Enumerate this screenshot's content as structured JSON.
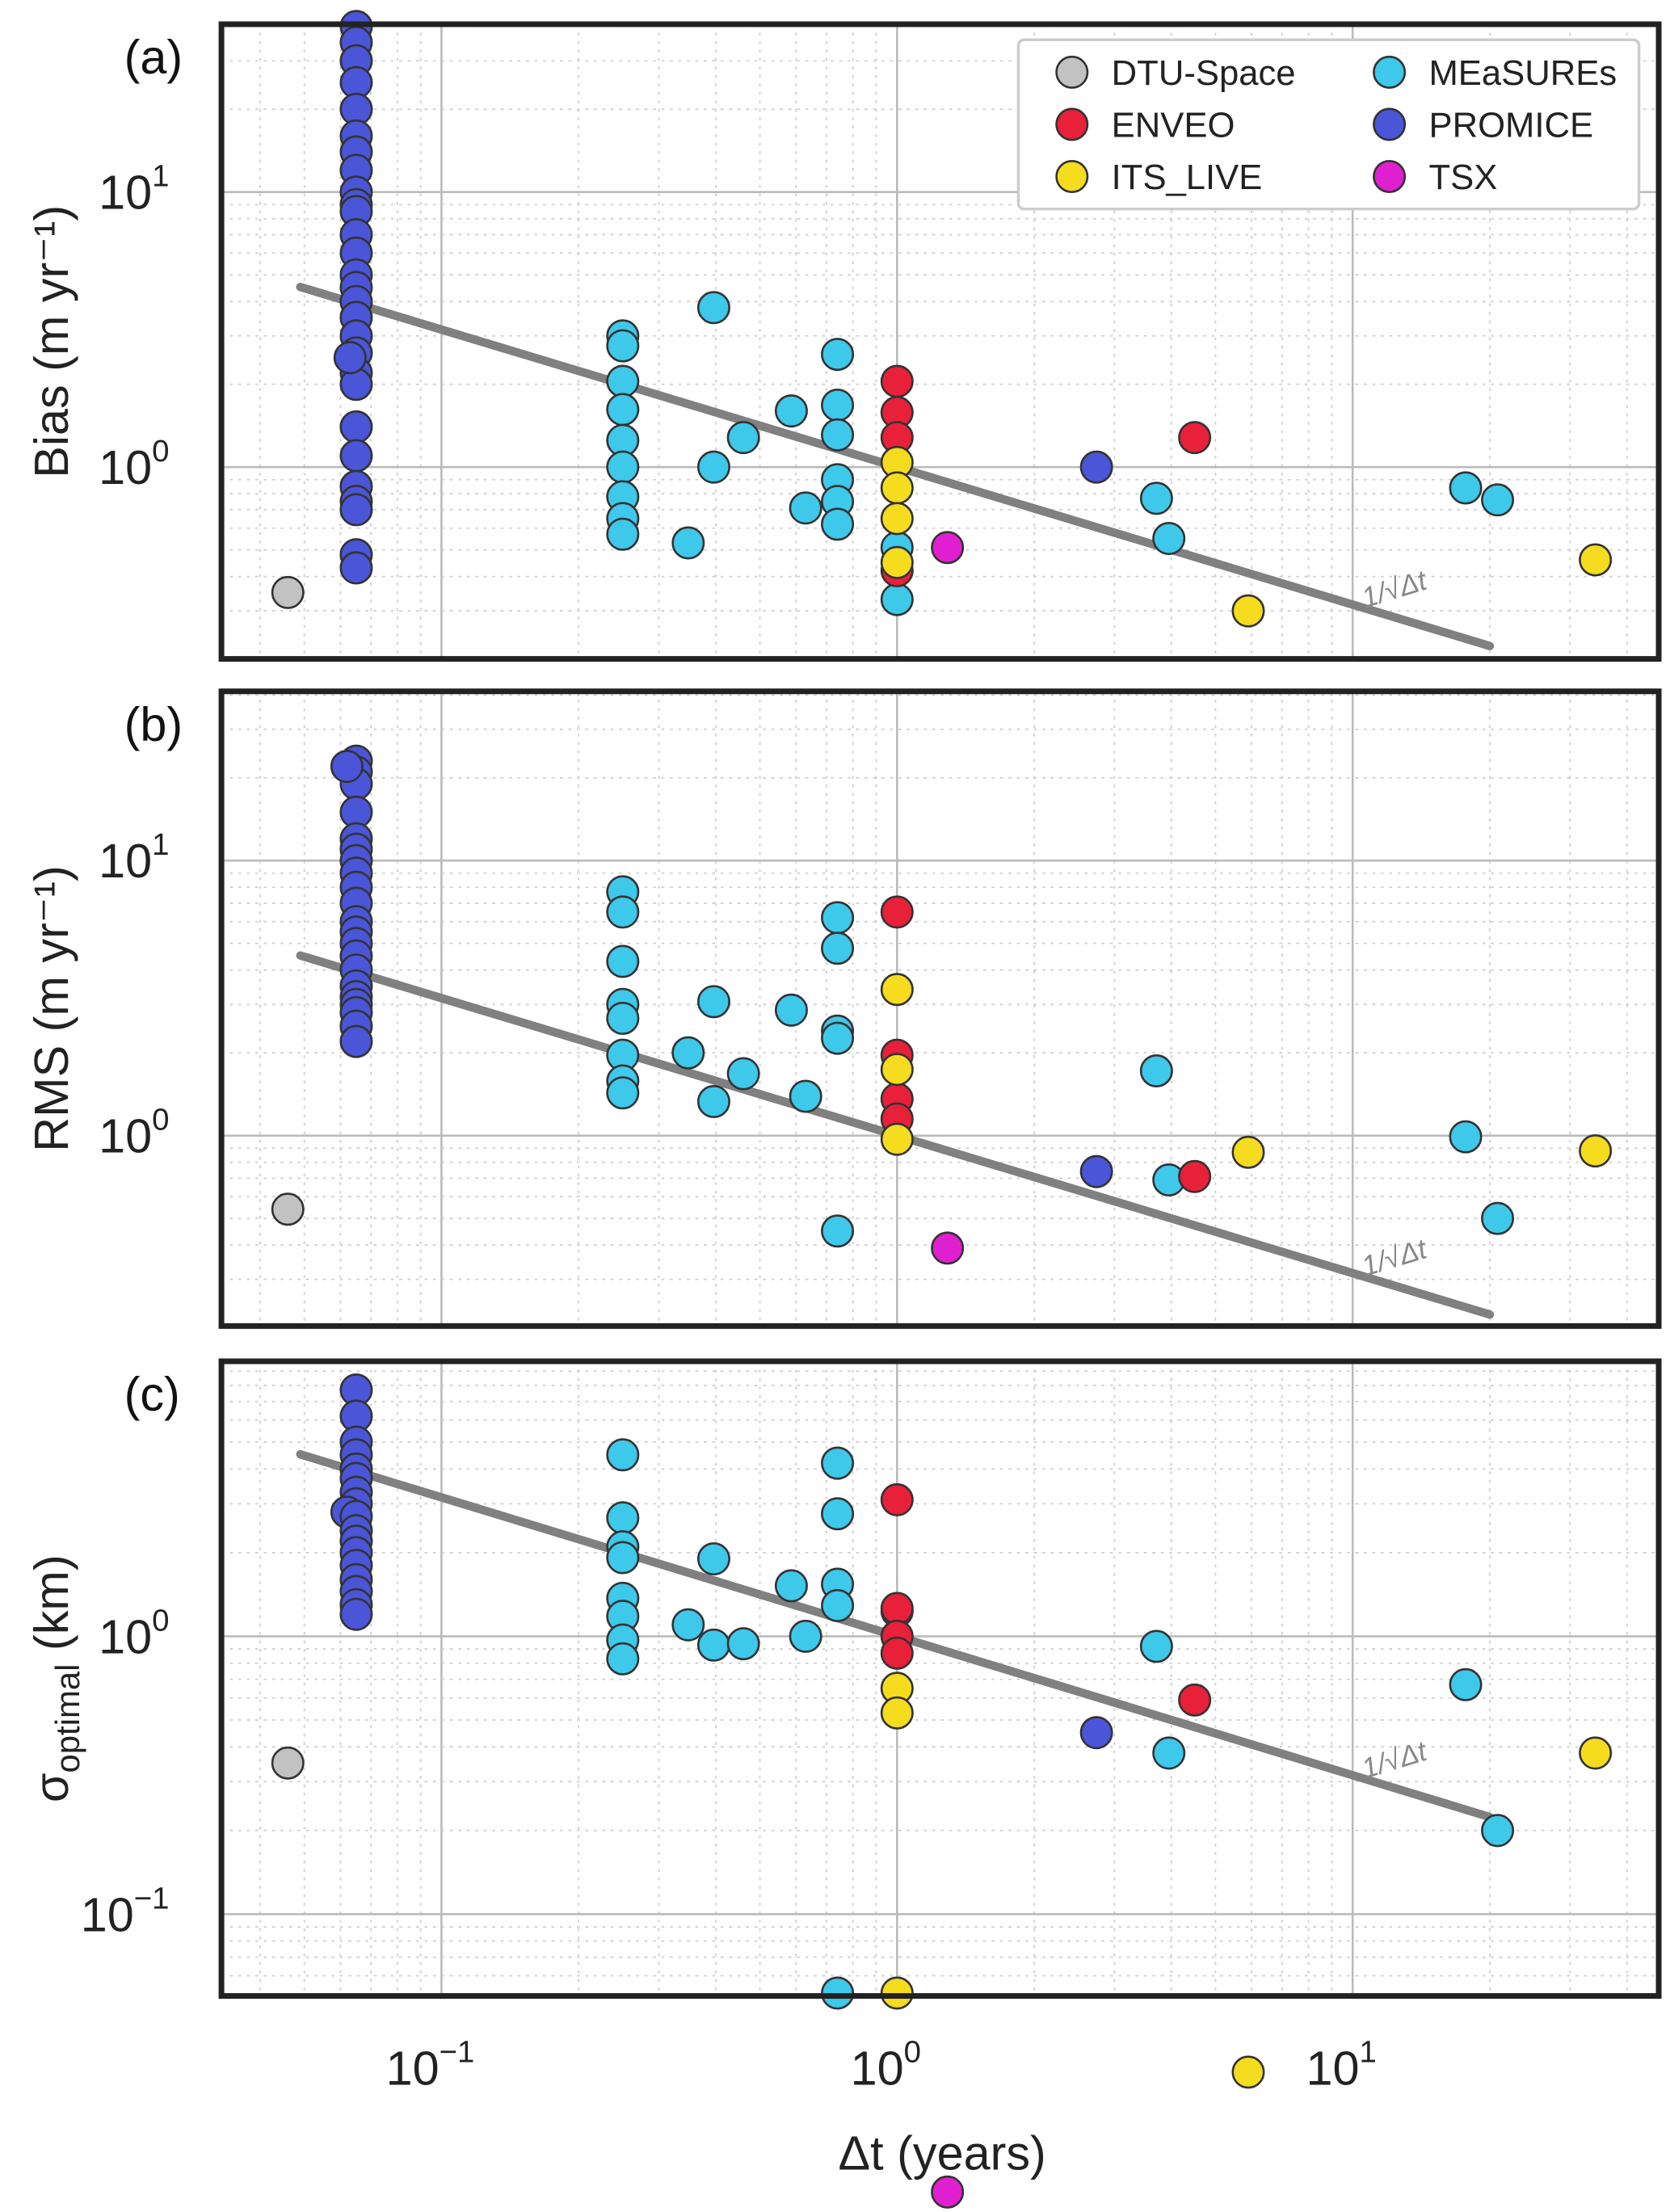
{
  "chart_data": {
    "type": "scatter",
    "xlabel": "Δt (years)",
    "xscale": "log",
    "xlim": [
      0.033,
      47
    ],
    "x_ticks": [
      {
        "base": "10",
        "exp": "−1"
      },
      {
        "base": "10",
        "exp": "0"
      },
      {
        "base": "10",
        "exp": "1"
      }
    ],
    "legend": {
      "placement": "top-right",
      "entries": [
        "DTU-Space",
        "ENVEO",
        "ITS_LIVE",
        "MEaSUREs",
        "PROMICE",
        "TSX"
      ]
    },
    "colors": {
      "DTU-Space": "#c2c2c2",
      "ENVEO": "#e8203a",
      "ITS_LIVE": "#f5dc1e",
      "MEaSUREs": "#3ec8ea",
      "PROMICE": "#4a55d8",
      "TSX": "#e020d0",
      "line": "#808080"
    },
    "reference_line": {
      "label": "1/√Δt",
      "formula": "y = 1/sqrt(Δt)",
      "x_range": [
        0.049,
        20
      ]
    },
    "panels": [
      {
        "label": "(a)",
        "ylabel": "Bias (m yr⁻¹)",
        "yscale": "log",
        "ylim": [
          0.2,
          41
        ],
        "y_ticks": [
          {
            "base": "10",
            "exp": "1"
          },
          {
            "base": "10",
            "exp": "0"
          }
        ],
        "series": {
          "DTU-Space": [
            [
              0.046,
              0.35
            ]
          ],
          "PROMICE": [
            [
              0.065,
              40
            ],
            [
              0.065,
              35
            ],
            [
              0.065,
              30
            ],
            [
              0.065,
              25
            ],
            [
              0.065,
              20
            ],
            [
              0.065,
              16
            ],
            [
              0.065,
              14
            ],
            [
              0.065,
              12
            ],
            [
              0.065,
              10
            ],
            [
              0.065,
              9
            ],
            [
              0.065,
              8.5
            ],
            [
              0.065,
              7
            ],
            [
              0.065,
              6
            ],
            [
              0.065,
              5
            ],
            [
              0.065,
              4.5
            ],
            [
              0.065,
              4
            ],
            [
              0.065,
              3.5
            ],
            [
              0.065,
              3
            ],
            [
              0.065,
              2.6
            ],
            [
              0.065,
              2.2
            ],
            [
              0.065,
              2.0
            ],
            [
              0.063,
              2.5
            ],
            [
              0.065,
              1.4
            ],
            [
              0.065,
              1.1
            ],
            [
              0.065,
              0.85
            ],
            [
              0.065,
              0.75
            ],
            [
              0.065,
              0.7
            ],
            [
              0.065,
              0.48
            ],
            [
              0.065,
              0.43
            ],
            [
              2.74,
              1.0
            ]
          ],
          "MEaSUREs": [
            [
              0.25,
              3.0
            ],
            [
              0.25,
              2.76
            ],
            [
              0.25,
              2.05
            ],
            [
              0.25,
              1.62
            ],
            [
              0.25,
              1.25
            ],
            [
              0.25,
              1.0
            ],
            [
              0.25,
              0.78
            ],
            [
              0.25,
              0.65
            ],
            [
              0.25,
              0.57
            ],
            [
              0.348,
              0.53
            ],
            [
              0.396,
              3.8
            ],
            [
              0.396,
              1.0
            ],
            [
              0.46,
              1.28
            ],
            [
              0.586,
              1.6
            ],
            [
              0.63,
              0.71
            ],
            [
              0.74,
              2.57
            ],
            [
              0.74,
              1.68
            ],
            [
              0.74,
              1.31
            ],
            [
              0.74,
              0.9
            ],
            [
              0.74,
              0.75
            ],
            [
              0.74,
              0.62
            ],
            [
              1.0,
              0.51
            ],
            [
              1.0,
              0.33
            ],
            [
              3.71,
              0.77
            ],
            [
              3.95,
              0.55
            ],
            [
              17.7,
              0.84
            ],
            [
              20.8,
              0.76
            ]
          ],
          "ENVEO": [
            [
              1.0,
              2.05
            ],
            [
              1.0,
              1.58
            ],
            [
              1.0,
              1.28
            ],
            [
              1.0,
              0.42
            ],
            [
              4.5,
              1.28
            ]
          ],
          "ITS_LIVE": [
            [
              1.0,
              1.04
            ],
            [
              1.0,
              0.84
            ],
            [
              1.0,
              0.65
            ],
            [
              1.0,
              0.45
            ],
            [
              5.9,
              0.3
            ],
            [
              34.1,
              0.46
            ]
          ],
          "TSX": [
            [
              1.29,
              0.51
            ]
          ]
        }
      },
      {
        "label": "(b)",
        "ylabel": "RMS (m yr⁻¹)",
        "yscale": "log",
        "ylim": [
          0.2,
          41
        ],
        "y_ticks": [
          {
            "base": "10",
            "exp": "1"
          },
          {
            "base": "10",
            "exp": "0"
          }
        ],
        "series": {
          "DTU-Space": [
            [
              0.046,
              0.54
            ]
          ],
          "PROMICE": [
            [
              0.065,
              23
            ],
            [
              0.065,
              21
            ],
            [
              0.065,
              19
            ],
            [
              0.062,
              22
            ],
            [
              0.065,
              15
            ],
            [
              0.065,
              12
            ],
            [
              0.065,
              11
            ],
            [
              0.065,
              10
            ],
            [
              0.065,
              9
            ],
            [
              0.065,
              8
            ],
            [
              0.065,
              7
            ],
            [
              0.065,
              6
            ],
            [
              0.065,
              5.5
            ],
            [
              0.065,
              5
            ],
            [
              0.065,
              4.5
            ],
            [
              0.065,
              4
            ],
            [
              0.065,
              3.5
            ],
            [
              0.065,
              3.2
            ],
            [
              0.065,
              3
            ],
            [
              0.065,
              2.8
            ],
            [
              0.065,
              2.5
            ],
            [
              0.065,
              2.2
            ],
            [
              2.74,
              0.74
            ]
          ],
          "MEaSUREs": [
            [
              0.25,
              7.7
            ],
            [
              0.25,
              6.5
            ],
            [
              0.25,
              4.3
            ],
            [
              0.25,
              3.0
            ],
            [
              0.25,
              2.67
            ],
            [
              0.25,
              1.96
            ],
            [
              0.25,
              1.58
            ],
            [
              0.25,
              1.43
            ],
            [
              0.348,
              2.0
            ],
            [
              0.396,
              3.07
            ],
            [
              0.396,
              1.33
            ],
            [
              0.46,
              1.68
            ],
            [
              0.586,
              2.86
            ],
            [
              0.63,
              1.39
            ],
            [
              0.74,
              6.2
            ],
            [
              0.74,
              4.8
            ],
            [
              0.74,
              2.4
            ],
            [
              0.74,
              2.26
            ],
            [
              0.74,
              0.45
            ],
            [
              3.71,
              1.72
            ],
            [
              3.95,
              0.69
            ],
            [
              17.7,
              0.99
            ],
            [
              20.8,
              0.5
            ]
          ],
          "ENVEO": [
            [
              1.0,
              6.5
            ],
            [
              1.0,
              1.96
            ],
            [
              1.0,
              1.36
            ],
            [
              1.0,
              1.15
            ],
            [
              4.5,
              0.71
            ]
          ],
          "ITS_LIVE": [
            [
              1.0,
              3.4
            ],
            [
              1.0,
              1.74
            ],
            [
              1.0,
              0.97
            ],
            [
              5.9,
              0.87
            ],
            [
              34.1,
              0.88
            ]
          ],
          "TSX": [
            [
              1.29,
              0.39
            ]
          ]
        }
      },
      {
        "label": "(c)",
        "ylabel": "σoptimal (km)",
        "ylabel_main": "σ",
        "ylabel_sub": "optimal",
        "ylabel_unit": " (km)",
        "yscale": "log",
        "ylim": [
          0.051,
          9.8
        ],
        "y_ticks": [
          {
            "base": "10",
            "exp": "0"
          },
          {
            "base": "10",
            "exp": "−1"
          }
        ],
        "series": {
          "DTU-Space": [
            [
              0.046,
              0.35
            ]
          ],
          "PROMICE": [
            [
              0.065,
              7.7
            ],
            [
              0.065,
              6.2
            ],
            [
              0.065,
              5
            ],
            [
              0.065,
              4.5
            ],
            [
              0.065,
              4
            ],
            [
              0.065,
              3.7
            ],
            [
              0.065,
              3.3
            ],
            [
              0.065,
              3
            ],
            [
              0.062,
              2.8
            ],
            [
              0.065,
              2.7
            ],
            [
              0.065,
              2.4
            ],
            [
              0.065,
              2.2
            ],
            [
              0.065,
              2
            ],
            [
              0.065,
              1.8
            ],
            [
              0.065,
              1.6
            ],
            [
              0.065,
              1.45
            ],
            [
              0.065,
              1.3
            ],
            [
              0.065,
              1.2
            ],
            [
              2.74,
              0.45
            ]
          ],
          "MEaSUREs": [
            [
              0.25,
              4.5
            ],
            [
              0.25,
              2.67
            ],
            [
              0.25,
              2.1
            ],
            [
              0.25,
              1.92
            ],
            [
              0.25,
              1.37
            ],
            [
              0.25,
              1.18
            ],
            [
              0.25,
              0.97
            ],
            [
              0.25,
              0.83
            ],
            [
              0.348,
              1.1
            ],
            [
              0.396,
              1.9
            ],
            [
              0.396,
              0.93
            ],
            [
              0.46,
              0.94
            ],
            [
              0.586,
              1.52
            ],
            [
              0.63,
              1.0
            ],
            [
              0.74,
              4.2
            ],
            [
              0.74,
              2.76
            ],
            [
              0.74,
              1.54
            ],
            [
              0.74,
              1.29
            ],
            [
              0.74,
              0.052
            ],
            [
              1.0,
              1.23
            ],
            [
              3.71,
              0.92
            ],
            [
              3.95,
              0.38
            ],
            [
              17.7,
              0.67
            ],
            [
              20.8,
              0.2
            ]
          ],
          "ENVEO": [
            [
              1.0,
              3.1
            ],
            [
              1.0,
              1.26
            ],
            [
              1.0,
              1.0
            ],
            [
              1.0,
              0.87
            ],
            [
              4.5,
              0.59
            ]
          ],
          "ITS_LIVE": [
            [
              1.0,
              0.65
            ],
            [
              1.0,
              0.53
            ],
            [
              1.0,
              0.052
            ],
            [
              5.9,
              0.027
            ],
            [
              34.1,
              0.38
            ]
          ],
          "TSX": [
            [
              1.29,
              0.01
            ]
          ]
        }
      }
    ]
  }
}
